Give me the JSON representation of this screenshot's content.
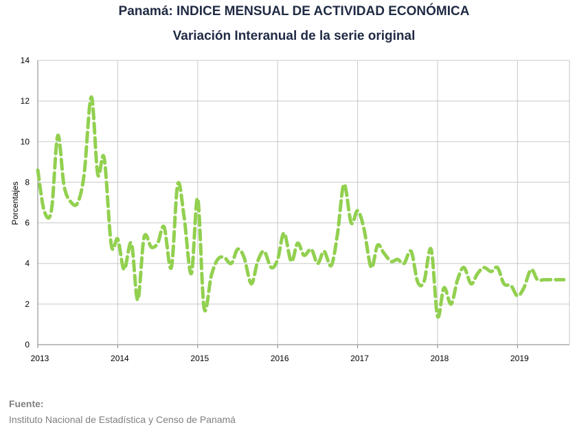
{
  "title": "Panamá: INDICE MENSUAL DE ACTIVIDAD ECONÓMICA",
  "subtitle": "Variación Interanual de la serie original",
  "source_label": "Fuente:",
  "source_text": "Instituto Nacional de Estadística y Censo de Panamá",
  "colors": {
    "line": "#92d050",
    "grid": "#c8c8c8",
    "axis": "#7f7f7f",
    "title": "#1f2a44"
  },
  "chart_data": {
    "type": "line",
    "ylabel": "Porcentajes",
    "xlabel": "",
    "ylim": [
      0,
      14
    ],
    "yticks": [
      0,
      2,
      4,
      6,
      8,
      10,
      12,
      14
    ],
    "xlim": [
      2013,
      2019.65
    ],
    "xticks": [
      2013,
      2014,
      2015,
      2016,
      2017,
      2018,
      2019
    ],
    "xtick_labels": [
      "2013",
      "2014",
      "2015",
      "2016",
      "2017",
      "2018",
      "2019"
    ],
    "grid": true,
    "line_style": "dashed",
    "series": [
      {
        "x": [
          2013.0,
          2013.08,
          2013.17,
          2013.25,
          2013.33,
          2013.42,
          2013.5,
          2013.58,
          2013.67,
          2013.75,
          2013.83,
          2013.92,
          2014.0,
          2014.08,
          2014.17,
          2014.25,
          2014.33,
          2014.42,
          2014.5,
          2014.58,
          2014.67,
          2014.75,
          2014.83,
          2014.92,
          2015.0,
          2015.08,
          2015.17,
          2015.25,
          2015.33,
          2015.42,
          2015.5,
          2015.58,
          2015.67,
          2015.75,
          2015.83,
          2015.92,
          2016.0,
          2016.08,
          2016.17,
          2016.25,
          2016.33,
          2016.42,
          2016.5,
          2016.58,
          2016.67,
          2016.75,
          2016.83,
          2016.92,
          2017.0,
          2017.08,
          2017.17,
          2017.25,
          2017.33,
          2017.42,
          2017.5,
          2017.58,
          2017.67,
          2017.75,
          2017.83,
          2017.92,
          2018.0,
          2018.08,
          2018.17,
          2018.25,
          2018.33,
          2018.42,
          2018.5,
          2018.58,
          2018.67,
          2018.75,
          2018.83,
          2018.92,
          2019.0,
          2019.08,
          2019.17,
          2019.25,
          2019.33,
          2019.42,
          2019.5,
          2019.58
        ],
        "values": [
          8.6,
          6.6,
          6.6,
          10.3,
          7.8,
          7.0,
          7.0,
          8.4,
          12.2,
          8.4,
          9.2,
          4.9,
          5.2,
          3.7,
          5.0,
          2.2,
          5.3,
          4.8,
          5.0,
          5.8,
          3.8,
          7.9,
          6.3,
          3.5,
          7.2,
          1.8,
          3.4,
          4.2,
          4.3,
          4.0,
          4.7,
          4.3,
          3.0,
          4.1,
          4.6,
          3.8,
          4.2,
          5.5,
          4.1,
          5.0,
          4.4,
          4.7,
          4.0,
          4.6,
          3.9,
          5.5,
          7.9,
          6.0,
          6.6,
          5.7,
          3.8,
          4.9,
          4.5,
          4.1,
          4.2,
          4.0,
          4.6,
          3.1,
          3.1,
          4.7,
          1.4,
          2.8,
          2.0,
          3.2,
          3.8,
          3.0,
          3.5,
          3.8,
          3.6,
          3.8,
          3.0,
          2.9,
          2.4,
          2.8,
          3.7,
          3.2,
          3.2,
          3.2,
          3.2,
          3.2
        ]
      }
    ]
  }
}
